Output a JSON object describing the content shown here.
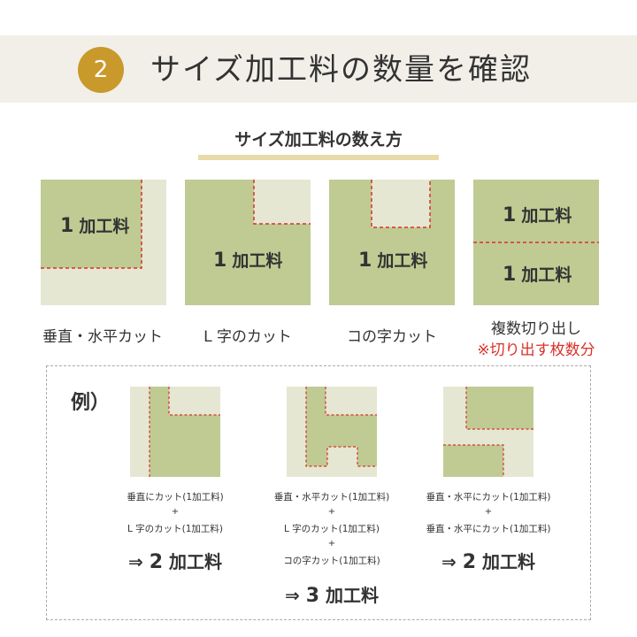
{
  "header": {
    "step_number": "2",
    "title": "サイズ加工料の数量を確認"
  },
  "section": {
    "subtitle": "サイズ加工料の数え方"
  },
  "patterns": [
    {
      "count": "1",
      "unit": "加工料",
      "caption": "垂直・水平カット"
    },
    {
      "count": "1",
      "unit": "加工料",
      "caption": "L 字のカット"
    },
    {
      "count": "1",
      "unit": "加工料",
      "caption": "コの字カット"
    },
    {
      "count_top": "1",
      "count_bottom": "1",
      "unit": "加工料",
      "caption": "複数切り出し",
      "note": "※切り出す枚数分"
    }
  ],
  "examples": {
    "label": "例）",
    "items": [
      {
        "lines": [
          "垂直にカット(1加工料)",
          "L 字のカット(1加工料)"
        ],
        "plus": "+",
        "arrow": "⇒",
        "count": "2",
        "unit": "加工料"
      },
      {
        "lines": [
          "垂直・水平カット(1加工料)",
          "L 字のカット(1加工料)",
          "コの字カット(1加工料)"
        ],
        "plus": "+",
        "arrow": "⇒",
        "count": "3",
        "unit": "加工料"
      },
      {
        "lines": [
          "垂直・水平にカット(1加工料)",
          "垂直・水平にカット(1加工料)"
        ],
        "plus": "+",
        "arrow": "⇒",
        "count": "2",
        "unit": "加工料"
      }
    ]
  },
  "colors": {
    "accent_gold": "#c9992b",
    "header_band": "#f1efe8",
    "mat_green": "#bfcb93",
    "mat_light": "#e5e7d3",
    "cut_line_red": "#d8322a"
  }
}
